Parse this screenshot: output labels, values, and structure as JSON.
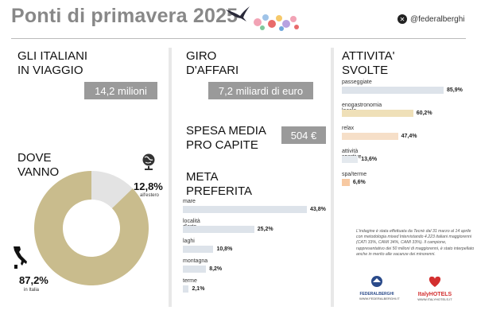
{
  "header": {
    "title": "Ponti di primavera 2025",
    "handle": "@federalberghi"
  },
  "sections": {
    "travel": {
      "title": "GLI ITALIANI\nIN VIAGGIO",
      "value": "14,2 milioni"
    },
    "where": {
      "title": "DOVE\nVANNO"
    },
    "turnover": {
      "title": "GIRO\nD'AFFARI",
      "value": "7,2 miliardi di euro"
    },
    "spending": {
      "title": "SPESA MEDIA\nPRO CAPITE",
      "value": "504 €"
    },
    "destination": {
      "title": "META\nPREFERITA"
    },
    "activities": {
      "title": "ATTIVITA'\nSVOLTE"
    }
  },
  "colors": {
    "donut_italy": "#c9bc8d",
    "donut_abroad": "#e3e3e3",
    "dest_bar": "#dde3ea",
    "act_colors": [
      "#dde3ea",
      "#efe0b8",
      "#f6dfc8",
      "#e4e9ee",
      "#f7c9a2"
    ]
  },
  "chart_data": [
    {
      "type": "pie",
      "title": "DOVE VANNO",
      "categories": [
        "in Italia",
        "all'estero"
      ],
      "values": [
        87.2,
        12.8
      ],
      "labels": [
        "87,2%",
        "12,8%"
      ]
    },
    {
      "type": "bar",
      "title": "META PREFERITA",
      "categories": [
        "mare",
        "località d'arte",
        "laghi",
        "montagna",
        "terme"
      ],
      "values": [
        43.8,
        25.2,
        10.8,
        8.2,
        2.1
      ],
      "labels": [
        "43,8%",
        "25,2%",
        "10,8%",
        "8,2%",
        "2,1%"
      ]
    },
    {
      "type": "bar",
      "title": "ATTIVITA' SVOLTE",
      "categories": [
        "passeggiate",
        "enogastronomia locale",
        "relax",
        "attività sportive",
        "spa/terme"
      ],
      "values": [
        85.9,
        60.2,
        47.4,
        13.6,
        6.6
      ],
      "labels": [
        "85,9%",
        "60,2%",
        "47,4%",
        "13,6%",
        "6,6%"
      ]
    }
  ],
  "note": "L'indagine è stata effettuata da Tecnè dal 31 marzo al 14 aprile con metodologia mixed Intervistando 4.223 italiani maggiorenni (CATI 33%, CAWI 34%, CAMI 33%). Il campione, rappresentativo dei 50 milioni di maggiorenni, è stato interpellato anche in merito alle vacanze dei minorenni.",
  "logos": {
    "federalberghi": "FEDERALBERGHI",
    "federalberghi_url": "WWW.FEDERALBERGHI.IT",
    "italyhotels": "ItalyHOTELS",
    "italyhotels_url": "WWW.ITALYHOTELS.IT"
  }
}
